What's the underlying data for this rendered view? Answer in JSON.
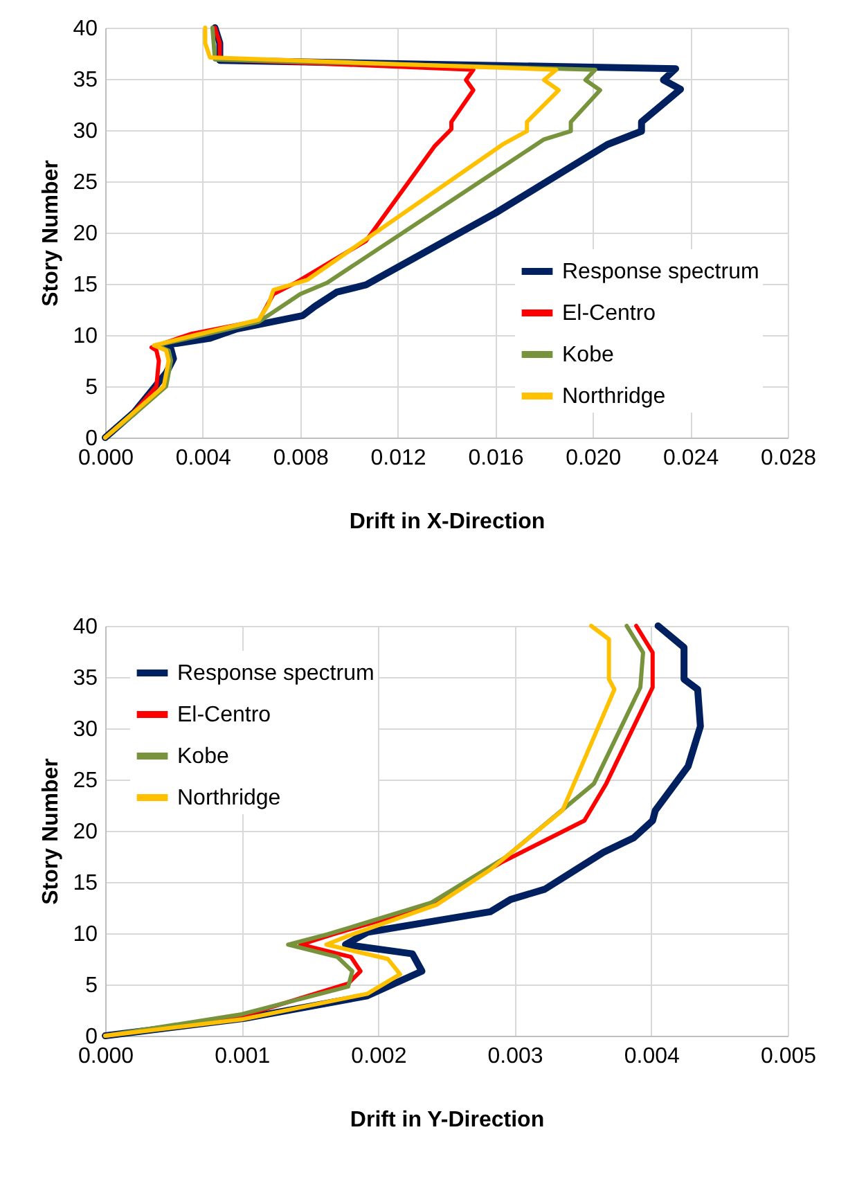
{
  "chart_data": [
    {
      "type": "line",
      "xlabel": "Drift in X-Direction",
      "ylabel": "Story Number",
      "xlim": [
        0,
        0.028
      ],
      "ylim": [
        0,
        40
      ],
      "xticks": [
        {
          "value": 0,
          "label": "0.000"
        },
        {
          "value": 0.004,
          "label": "0.004"
        },
        {
          "value": 0.008,
          "label": "0.008"
        },
        {
          "value": 0.012,
          "label": "0.012"
        },
        {
          "value": 0.016,
          "label": "0.016"
        },
        {
          "value": 0.02,
          "label": "0.020"
        },
        {
          "value": 0.024,
          "label": "0.024"
        },
        {
          "value": 0.028,
          "label": "0.028"
        }
      ],
      "yticks": [
        0,
        5,
        10,
        15,
        20,
        25,
        30,
        35,
        40
      ],
      "grid": true,
      "legend": "bottom right",
      "series": [
        {
          "name": "Response spectrum",
          "color": "#002060",
          "x": [
            0,
            0.0012,
            0.0025,
            0.0028,
            0.0027,
            0.0024,
            0.0043,
            0.0054,
            0.0081,
            0.0086,
            0.0095,
            0.0107,
            0.016,
            0.0206,
            0.022,
            0.022,
            0.0236,
            0.0229,
            0.0234,
            0.0047,
            0.0047,
            0.0045
          ],
          "values": [
            0,
            2.5,
            6.3,
            7.7,
            8.6,
            9.0,
            9.7,
            10.6,
            11.9,
            12.8,
            14.2,
            14.9,
            21.9,
            28.6,
            29.9,
            30.8,
            34,
            34.9,
            36,
            36.8,
            38.5,
            40
          ]
        },
        {
          "name": "El-Centro",
          "color": "#ff0000",
          "x": [
            0,
            0.001,
            0.0021,
            0.0022,
            0.0021,
            0.0019,
            0.0035,
            0.0063,
            0.0069,
            0.0078,
            0.0107,
            0.0135,
            0.0142,
            0.0142,
            0.0151,
            0.0148,
            0.0151,
            0.0047,
            0.0047,
            0.0045
          ],
          "values": [
            0,
            2,
            5,
            7.5,
            8.5,
            8.8,
            10.1,
            11.4,
            14,
            15.1,
            19.2,
            28.4,
            30.1,
            30.8,
            33.9,
            34.9,
            35.9,
            36.9,
            38.5,
            40
          ]
        },
        {
          "name": "Kobe",
          "color": "#77933c",
          "x": [
            0,
            0.0012,
            0.0025,
            0.0027,
            0.0026,
            0.0021,
            0.004,
            0.0063,
            0.008,
            0.0091,
            0.018,
            0.0191,
            0.0191,
            0.0203,
            0.0197,
            0.0201,
            0.0045,
            0.0044
          ],
          "values": [
            0,
            2.3,
            5,
            7.5,
            8.5,
            9,
            10,
            11.3,
            14,
            15.1,
            29.1,
            29.9,
            30.8,
            33.9,
            34.9,
            35.9,
            36.9,
            40
          ]
        },
        {
          "name": "Northridge",
          "color": "#ffc000",
          "x": [
            0,
            0.0011,
            0.0024,
            0.0026,
            0.0025,
            0.002,
            0.0037,
            0.0063,
            0.0067,
            0.0069,
            0.0083,
            0.0163,
            0.0173,
            0.0173,
            0.0186,
            0.018,
            0.0185,
            0.0043,
            0.0041,
            0.0041
          ],
          "values": [
            0,
            2.3,
            5,
            7.5,
            8.5,
            9,
            10,
            11.5,
            13,
            14.4,
            15.4,
            28.6,
            29.9,
            30.8,
            33.9,
            34.9,
            35.9,
            37.1,
            38.5,
            40
          ]
        }
      ]
    },
    {
      "type": "line",
      "xlabel": "Drift in Y-Direction",
      "ylabel": "Story Number",
      "xlim": [
        0,
        0.005
      ],
      "ylim": [
        0,
        40
      ],
      "xticks": [
        {
          "value": 0,
          "label": "0.000"
        },
        {
          "value": 0.001,
          "label": "0.001"
        },
        {
          "value": 0.002,
          "label": "0.002"
        },
        {
          "value": 0.003,
          "label": "0.003"
        },
        {
          "value": 0.004,
          "label": "0.004"
        },
        {
          "value": 0.005,
          "label": "0.005"
        }
      ],
      "yticks": [
        0,
        5,
        10,
        15,
        20,
        25,
        30,
        35,
        40
      ],
      "grid": true,
      "legend": "top left",
      "series": [
        {
          "name": "Response spectrum",
          "color": "#002060",
          "x": [
            0,
            0.00102,
            0.00192,
            0.00232,
            0.00225,
            0.00176,
            0.00192,
            0.00282,
            0.00297,
            0.00322,
            0.00365,
            0.00387,
            0.00401,
            0.00403,
            0.00427,
            0.00436,
            0.00434,
            0.00424,
            0.00424,
            0.00405
          ],
          "values": [
            0,
            1.7,
            3.9,
            6.3,
            8,
            8.9,
            10.1,
            12.1,
            13.3,
            14.3,
            17.9,
            19.3,
            21,
            22,
            26.3,
            30.2,
            33.8,
            34.8,
            37.9,
            40
          ]
        },
        {
          "name": "El-Centro",
          "color": "#ff0000",
          "x": [
            0,
            0.001,
            0.00178,
            0.00187,
            0.0018,
            0.00143,
            0.00167,
            0.00235,
            0.0029,
            0.00351,
            0.00367,
            0.00401,
            0.00401,
            0.00389
          ],
          "values": [
            0,
            1.9,
            5.1,
            6.3,
            7.7,
            8.9,
            9.9,
            12.6,
            16.9,
            21,
            24.6,
            34,
            37.4,
            40
          ]
        },
        {
          "name": "Kobe",
          "color": "#77933c",
          "x": [
            0,
            0.001,
            0.00178,
            0.00181,
            0.0017,
            0.00134,
            0.00163,
            0.00239,
            0.00293,
            0.00358,
            0.00392,
            0.00394,
            0.00382
          ],
          "values": [
            0,
            2.1,
            4.8,
            6.3,
            7.7,
            8.9,
            9.9,
            13,
            17.4,
            24.6,
            34,
            37.4,
            40
          ]
        },
        {
          "name": "Northridge",
          "color": "#ffc000",
          "x": [
            0,
            0.001,
            0.00192,
            0.00216,
            0.00207,
            0.00162,
            0.00181,
            0.00243,
            0.00282,
            0.00335,
            0.00373,
            0.00369,
            0.00369,
            0.00356
          ],
          "values": [
            0,
            1.6,
            4.1,
            6,
            7.5,
            8.9,
            9.9,
            12.8,
            16.2,
            22,
            33.8,
            34.8,
            38.7,
            40
          ]
        }
      ]
    }
  ]
}
